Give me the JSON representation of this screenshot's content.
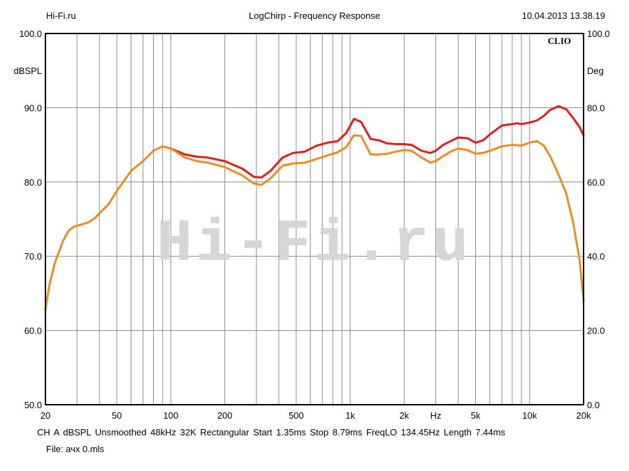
{
  "header": {
    "left": "Hi-Fi.ru",
    "center": "LogChirp - Frequency Response",
    "right": "10.04.2013 13.38.19"
  },
  "brand": "CLIO",
  "watermark": "Hi-Fi.ru",
  "footer": {
    "settings": "CH A   dBSPL   Unsmoothed   48kHz   32K   Rectangular   Start 1.35ms   Stop 8.79ms   FreqLO 134.45Hz   Length 7.44ms",
    "file": "File: ачх 0.mls"
  },
  "colors": {
    "red": "#e01c1c",
    "orange": "#f28a1e",
    "grid": "#8c8c8c",
    "frame": "#000000"
  },
  "chart_data": {
    "type": "line",
    "title": "LogChirp - Frequency Response",
    "xlabel": "Hz",
    "ylabel": "dBSPL",
    "y2label": "Deg",
    "xscale": "log",
    "xlim": [
      20,
      20000
    ],
    "ylim": [
      50,
      100
    ],
    "y2lim": [
      0,
      100
    ],
    "x_ticks": [
      {
        "v": 20,
        "label": "20"
      },
      {
        "v": 50,
        "label": "50"
      },
      {
        "v": 100,
        "label": "100"
      },
      {
        "v": 200,
        "label": "200"
      },
      {
        "v": 500,
        "label": "500"
      },
      {
        "v": 1000,
        "label": "1k"
      },
      {
        "v": 2000,
        "label": "2k"
      },
      {
        "v": 3000,
        "label": "Hz"
      },
      {
        "v": 5000,
        "label": "5k"
      },
      {
        "v": 10000,
        "label": "10k"
      },
      {
        "v": 20000,
        "label": "20k"
      }
    ],
    "y_ticks": [
      {
        "v": 50,
        "label": "50.0"
      },
      {
        "v": 60,
        "label": "60.0"
      },
      {
        "v": 70,
        "label": "70.0"
      },
      {
        "v": 80,
        "label": "80.0"
      },
      {
        "v": 90,
        "label": "90.0"
      },
      {
        "v": 100,
        "label": "100.0"
      }
    ],
    "y2_ticks": [
      {
        "v": 0,
        "label": "0.0"
      },
      {
        "v": 20,
        "label": "20.0"
      },
      {
        "v": 40,
        "label": "40.0"
      },
      {
        "v": 60,
        "label": "60.0"
      },
      {
        "v": 80,
        "label": "80.0"
      },
      {
        "v": 100,
        "label": "100.0"
      }
    ],
    "grid": true,
    "series": [
      {
        "color": "#e01c1c",
        "points": [
          [
            90,
            84.8
          ],
          [
            100,
            84.5
          ],
          [
            120,
            83.7
          ],
          [
            140,
            83.4
          ],
          [
            160,
            83.3
          ],
          [
            200,
            82.8
          ],
          [
            250,
            81.8
          ],
          [
            290,
            80.7
          ],
          [
            320,
            80.6
          ],
          [
            360,
            81.5
          ],
          [
            420,
            83.3
          ],
          [
            480,
            83.9
          ],
          [
            560,
            84.1
          ],
          [
            650,
            84.9
          ],
          [
            750,
            85.3
          ],
          [
            850,
            85.5
          ],
          [
            950,
            86.6
          ],
          [
            1050,
            88.5
          ],
          [
            1150,
            88.1
          ],
          [
            1300,
            85.8
          ],
          [
            1450,
            85.6
          ],
          [
            1600,
            85.2
          ],
          [
            1800,
            85.1
          ],
          [
            2000,
            85.1
          ],
          [
            2200,
            85.0
          ],
          [
            2500,
            84.2
          ],
          [
            2800,
            83.9
          ],
          [
            3000,
            84.2
          ],
          [
            3300,
            85.0
          ],
          [
            3700,
            85.6
          ],
          [
            4000,
            86.0
          ],
          [
            4500,
            85.9
          ],
          [
            5000,
            85.3
          ],
          [
            5500,
            85.6
          ],
          [
            6000,
            86.4
          ],
          [
            7000,
            87.6
          ],
          [
            8000,
            87.8
          ],
          [
            8500,
            87.9
          ],
          [
            9000,
            87.8
          ],
          [
            10000,
            88.0
          ],
          [
            11000,
            88.3
          ],
          [
            12000,
            88.9
          ],
          [
            13000,
            89.7
          ],
          [
            14500,
            90.2
          ],
          [
            16000,
            89.8
          ],
          [
            17500,
            88.6
          ],
          [
            19000,
            87.4
          ],
          [
            20000,
            86.3
          ]
        ]
      },
      {
        "color": "#f28a1e",
        "points": [
          [
            20,
            62.8
          ],
          [
            21,
            66.0
          ],
          [
            22.5,
            69.0
          ],
          [
            25,
            72.0
          ],
          [
            27,
            73.5
          ],
          [
            29,
            74.0
          ],
          [
            32,
            74.3
          ],
          [
            35,
            74.6
          ],
          [
            38,
            75.2
          ],
          [
            40,
            75.8
          ],
          [
            45,
            77.0
          ],
          [
            50,
            78.8
          ],
          [
            55,
            80.2
          ],
          [
            60,
            81.5
          ],
          [
            70,
            82.8
          ],
          [
            80,
            84.2
          ],
          [
            90,
            84.8
          ],
          [
            100,
            84.5
          ],
          [
            120,
            83.3
          ],
          [
            140,
            82.8
          ],
          [
            160,
            82.6
          ],
          [
            200,
            82.0
          ],
          [
            250,
            80.9
          ],
          [
            290,
            79.8
          ],
          [
            320,
            79.6
          ],
          [
            360,
            80.5
          ],
          [
            420,
            82.2
          ],
          [
            480,
            82.5
          ],
          [
            560,
            82.6
          ],
          [
            650,
            83.1
          ],
          [
            750,
            83.6
          ],
          [
            850,
            84.0
          ],
          [
            950,
            84.7
          ],
          [
            1050,
            86.3
          ],
          [
            1150,
            86.2
          ],
          [
            1300,
            83.7
          ],
          [
            1450,
            83.7
          ],
          [
            1600,
            83.8
          ],
          [
            1800,
            84.1
          ],
          [
            2000,
            84.3
          ],
          [
            2200,
            84.2
          ],
          [
            2500,
            83.3
          ],
          [
            2800,
            82.6
          ],
          [
            3000,
            82.8
          ],
          [
            3300,
            83.5
          ],
          [
            3700,
            84.2
          ],
          [
            4000,
            84.5
          ],
          [
            4500,
            84.3
          ],
          [
            5000,
            83.8
          ],
          [
            5500,
            83.9
          ],
          [
            6000,
            84.2
          ],
          [
            7000,
            84.8
          ],
          [
            8000,
            85.0
          ],
          [
            9000,
            84.9
          ],
          [
            10000,
            85.3
          ],
          [
            11000,
            85.5
          ],
          [
            12000,
            84.9
          ],
          [
            13000,
            83.5
          ],
          [
            14500,
            81.0
          ],
          [
            16000,
            78.5
          ],
          [
            17500,
            74.5
          ],
          [
            19000,
            69.5
          ],
          [
            20000,
            64.0
          ]
        ]
      }
    ]
  }
}
